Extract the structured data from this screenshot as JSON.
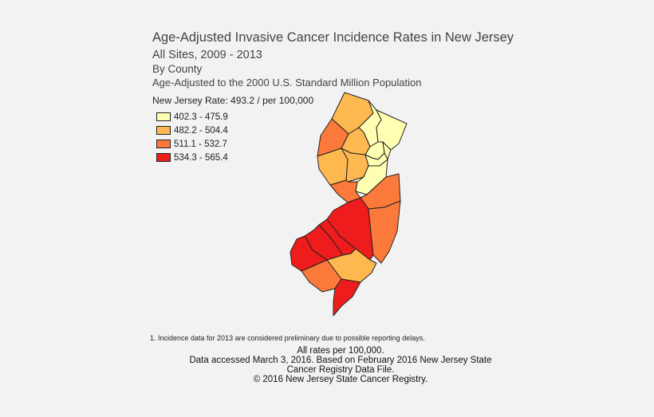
{
  "header": {
    "title": "Age-Adjusted Invasive Cancer Incidence Rates in New Jersey",
    "subtitle": "All Sites, 2009 - 2013",
    "by": "By County",
    "standard": "Age-Adjusted to the 2000 U.S. Standard Million Population"
  },
  "state_rate": "New Jersey Rate: 493.2 / per 100,000",
  "legend": [
    {
      "label": "402.3 - 475.9",
      "color": "#ffffb2"
    },
    {
      "label": "482.2 - 504.4",
      "color": "#fdb94f"
    },
    {
      "label": "511.1 - 532.7",
      "color": "#fb7a3b"
    },
    {
      "label": "534.3 - 565.4",
      "color": "#ee1c1c"
    }
  ],
  "footnote": "1. Incidence data for 2013 are considered preliminary due to possible reporting delays.",
  "credits": [
    "All rates per 100,000.",
    "Data accessed March 3, 2016. Based on February 2016 New Jersey State",
    "Cancer Registry Data File.",
    "© 2016 New Jersey State Cancer Registry."
  ],
  "counties": [
    {
      "id": "sussex",
      "cls": 1
    },
    {
      "id": "passaic",
      "cls": 0
    },
    {
      "id": "bergen",
      "cls": 0
    },
    {
      "id": "warren",
      "cls": 2
    },
    {
      "id": "morris",
      "cls": 1
    },
    {
      "id": "essex",
      "cls": 0
    },
    {
      "id": "hudson",
      "cls": 0
    },
    {
      "id": "union",
      "cls": 0
    },
    {
      "id": "hunterdon",
      "cls": 1
    },
    {
      "id": "somerset",
      "cls": 1
    },
    {
      "id": "middlesex",
      "cls": 0
    },
    {
      "id": "mercer",
      "cls": 2
    },
    {
      "id": "monmouth",
      "cls": 2
    },
    {
      "id": "burlington",
      "cls": 3
    },
    {
      "id": "ocean",
      "cls": 2
    },
    {
      "id": "camden",
      "cls": 3
    },
    {
      "id": "gloucester",
      "cls": 3
    },
    {
      "id": "salem",
      "cls": 3
    },
    {
      "id": "atlantic",
      "cls": 1
    },
    {
      "id": "cumberland",
      "cls": 2
    },
    {
      "id": "cape-may",
      "cls": 3
    }
  ]
}
